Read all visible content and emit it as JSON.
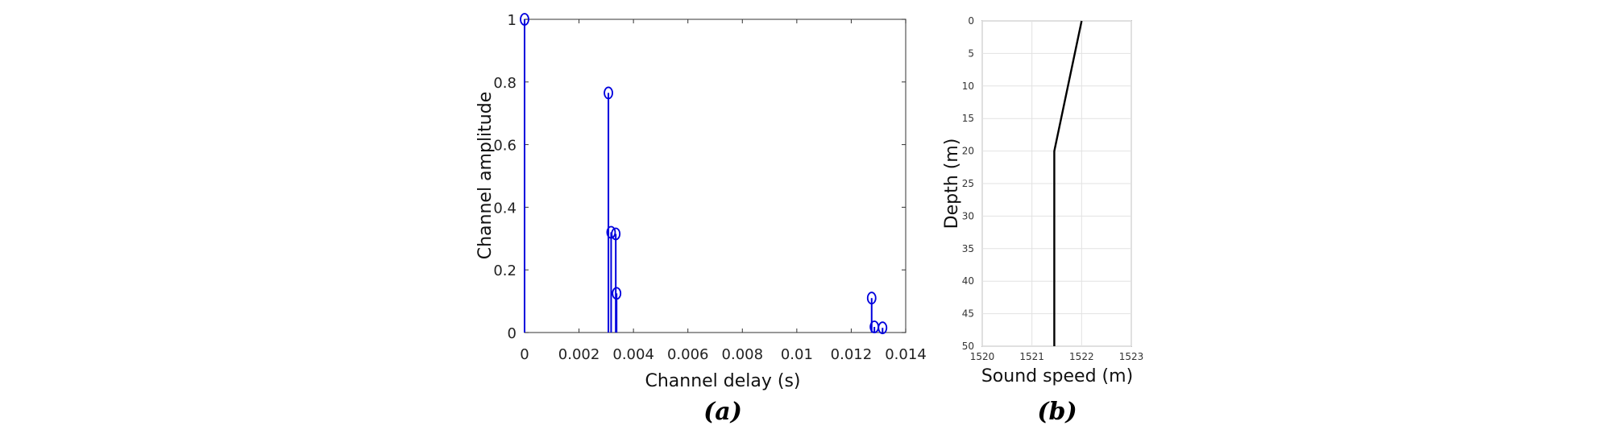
{
  "chart_data": [
    {
      "id": "a",
      "type": "stem",
      "panel_label": "(a)",
      "xlabel": "Channel delay (s)",
      "ylabel": "Channel amplitude",
      "xlim": [
        0,
        0.014
      ],
      "ylim": [
        0,
        1
      ],
      "xticks": [
        "0",
        "0.002",
        "0.004",
        "0.006",
        "0.008",
        "0.01",
        "0.012",
        "0.014"
      ],
      "yticks": [
        "0",
        "0.2",
        "0.4",
        "0.6",
        "0.8",
        "1"
      ],
      "grid": false,
      "color": "#0000dd",
      "points": [
        {
          "x": 0.0,
          "y": 1.0
        },
        {
          "x": 0.00308,
          "y": 0.765
        },
        {
          "x": 0.00318,
          "y": 0.32
        },
        {
          "x": 0.00335,
          "y": 0.315
        },
        {
          "x": 0.00338,
          "y": 0.125
        },
        {
          "x": 0.01275,
          "y": 0.11
        },
        {
          "x": 0.01285,
          "y": 0.018
        },
        {
          "x": 0.01315,
          "y": 0.015
        }
      ]
    },
    {
      "id": "b",
      "type": "line",
      "panel_label": "(b)",
      "xlabel": "Sound speed (m)",
      "ylabel": "Depth (m)",
      "xlim": [
        1520,
        1523
      ],
      "ylim": [
        0,
        50
      ],
      "y_inverted": true,
      "xticks": [
        "1520",
        "1521",
        "1522",
        "1523"
      ],
      "yticks": [
        "0",
        "5",
        "10",
        "15",
        "20",
        "25",
        "30",
        "35",
        "40",
        "45",
        "50"
      ],
      "grid": true,
      "color": "#000000",
      "points": [
        {
          "x": 1522.0,
          "y": 0
        },
        {
          "x": 1521.45,
          "y": 20
        },
        {
          "x": 1521.45,
          "y": 50
        }
      ]
    }
  ]
}
